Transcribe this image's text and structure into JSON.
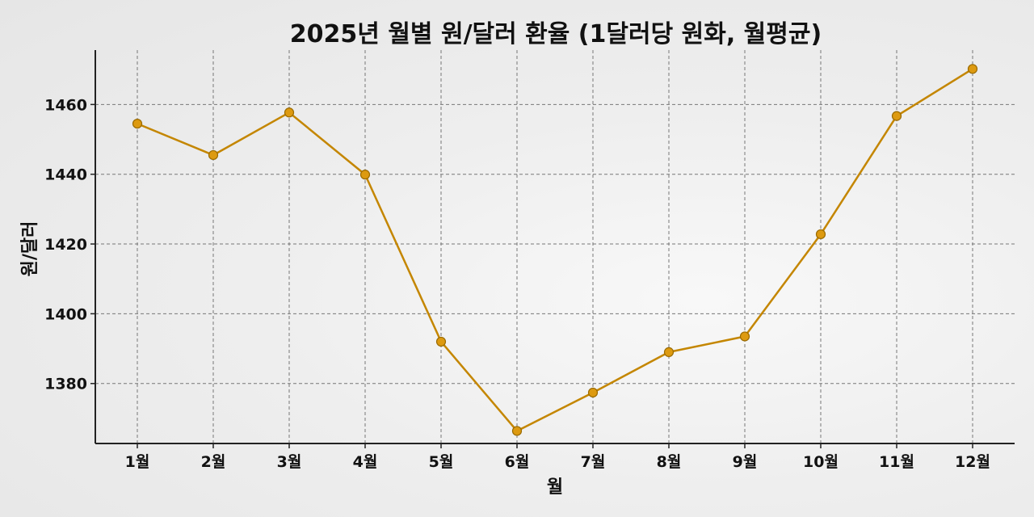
{
  "chart_data": {
    "type": "line",
    "title": "2025년 월별 원/달러 환율 (1달러당 원화, 월평균)",
    "xlabel": "월",
    "ylabel": "원/달러",
    "categories": [
      "1월",
      "2월",
      "3월",
      "4월",
      "5월",
      "6월",
      "7월",
      "8월",
      "9월",
      "10월",
      "11월",
      "12월"
    ],
    "series": [
      {
        "values": [
          1454.5,
          1445.5,
          1457.7,
          1439.9,
          1392.0,
          1366.4,
          1377.4,
          1389.0,
          1393.5,
          1422.8,
          1456.7,
          1470.2
        ],
        "color": "#c48600"
      }
    ],
    "ylim": [
      1362.8,
      1475.6
    ],
    "yticks": [
      1380,
      1400,
      1420,
      1440,
      1460
    ],
    "grid": true,
    "colors": {
      "line": "#c48600",
      "marker_fill": "#dd9a10",
      "marker_edge": "#9a6a00",
      "grid": "#777777",
      "axis": "#222222"
    }
  }
}
